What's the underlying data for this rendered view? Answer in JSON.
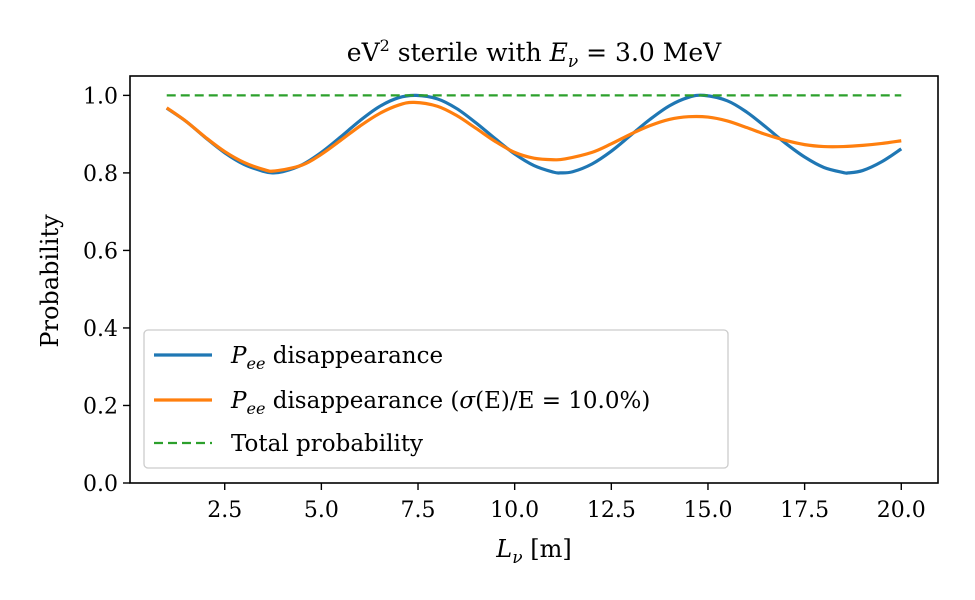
{
  "chart_data": {
    "type": "line",
    "title": {
      "prefix": "eV",
      "superscript": "2",
      "middle": " sterile with ",
      "math_var": "E",
      "math_sub": "ν",
      "suffix": " = 3.0 MeV"
    },
    "xlabel": {
      "math_var": "L",
      "math_sub": "ν",
      "suffix": " [m]"
    },
    "ylabel": "Probability",
    "xlim": [
      0.05,
      20.95
    ],
    "ylim": [
      0.0,
      1.05
    ],
    "xticks": [
      2.5,
      5.0,
      7.5,
      10.0,
      12.5,
      15.0,
      17.5,
      20.0
    ],
    "xtick_labels": [
      "2.5",
      "5.0",
      "7.5",
      "10.0",
      "12.5",
      "15.0",
      "17.5",
      "20.0"
    ],
    "yticks": [
      0.0,
      0.2,
      0.4,
      0.6,
      0.8,
      1.0
    ],
    "ytick_labels": [
      "0.0",
      "0.2",
      "0.4",
      "0.6",
      "0.8",
      "1.0"
    ],
    "grid": false,
    "legend_position": "lower-left",
    "series": [
      {
        "name": {
          "math_var": "P",
          "math_sub": "ee",
          "suffix": " disappearance"
        },
        "color": "#1f77b4",
        "style": "solid",
        "x": [
          1.0,
          1.5,
          2.0,
          2.5,
          3.0,
          3.5,
          3.73,
          4.0,
          4.5,
          5.0,
          5.5,
          6.0,
          6.5,
          7.0,
          7.45,
          8.0,
          8.5,
          9.0,
          9.5,
          10.0,
          10.5,
          11.0,
          11.18,
          11.5,
          12.0,
          12.5,
          13.0,
          13.5,
          14.0,
          14.5,
          14.9,
          15.5,
          16.0,
          16.5,
          17.0,
          17.5,
          18.0,
          18.5,
          18.63,
          19.0,
          19.5,
          20.0
        ],
        "y": [
          0.967,
          0.933,
          0.891,
          0.852,
          0.822,
          0.804,
          0.8,
          0.803,
          0.821,
          0.853,
          0.893,
          0.935,
          0.971,
          0.994,
          1.0,
          0.991,
          0.966,
          0.929,
          0.888,
          0.849,
          0.819,
          0.802,
          0.8,
          0.803,
          0.823,
          0.856,
          0.897,
          0.938,
          0.973,
          0.995,
          1.0,
          0.986,
          0.957,
          0.918,
          0.877,
          0.841,
          0.814,
          0.801,
          0.8,
          0.806,
          0.829,
          0.862
        ]
      },
      {
        "name": {
          "math_var": "P",
          "math_sub": "ee",
          "suffix": " disappearance (",
          "sigma": "σ",
          "tail": "(E)/E = 10.0%)"
        },
        "color": "#ff7f0e",
        "style": "solid",
        "x": [
          1.0,
          1.5,
          2.0,
          2.5,
          3.0,
          3.5,
          3.8,
          4.5,
          5.0,
          5.5,
          6.0,
          6.5,
          7.0,
          7.4,
          8.0,
          8.5,
          9.0,
          9.5,
          10.0,
          10.5,
          11.0,
          11.3,
          12.0,
          12.5,
          13.0,
          13.5,
          14.0,
          14.5,
          15.0,
          15.5,
          16.0,
          16.5,
          17.0,
          17.5,
          18.0,
          18.5,
          19.0,
          19.5,
          20.0
        ],
        "y": [
          0.968,
          0.933,
          0.892,
          0.855,
          0.827,
          0.809,
          0.805,
          0.82,
          0.848,
          0.884,
          0.921,
          0.953,
          0.975,
          0.982,
          0.972,
          0.948,
          0.915,
          0.881,
          0.853,
          0.838,
          0.834,
          0.836,
          0.853,
          0.875,
          0.9,
          0.922,
          0.938,
          0.945,
          0.944,
          0.934,
          0.917,
          0.899,
          0.884,
          0.873,
          0.868,
          0.868,
          0.871,
          0.876,
          0.883
        ]
      },
      {
        "name": {
          "text": "Total probability"
        },
        "color": "#2ca02c",
        "style": "dashed",
        "x": [
          1.0,
          20.0
        ],
        "y": [
          1.0,
          1.0
        ]
      }
    ]
  }
}
